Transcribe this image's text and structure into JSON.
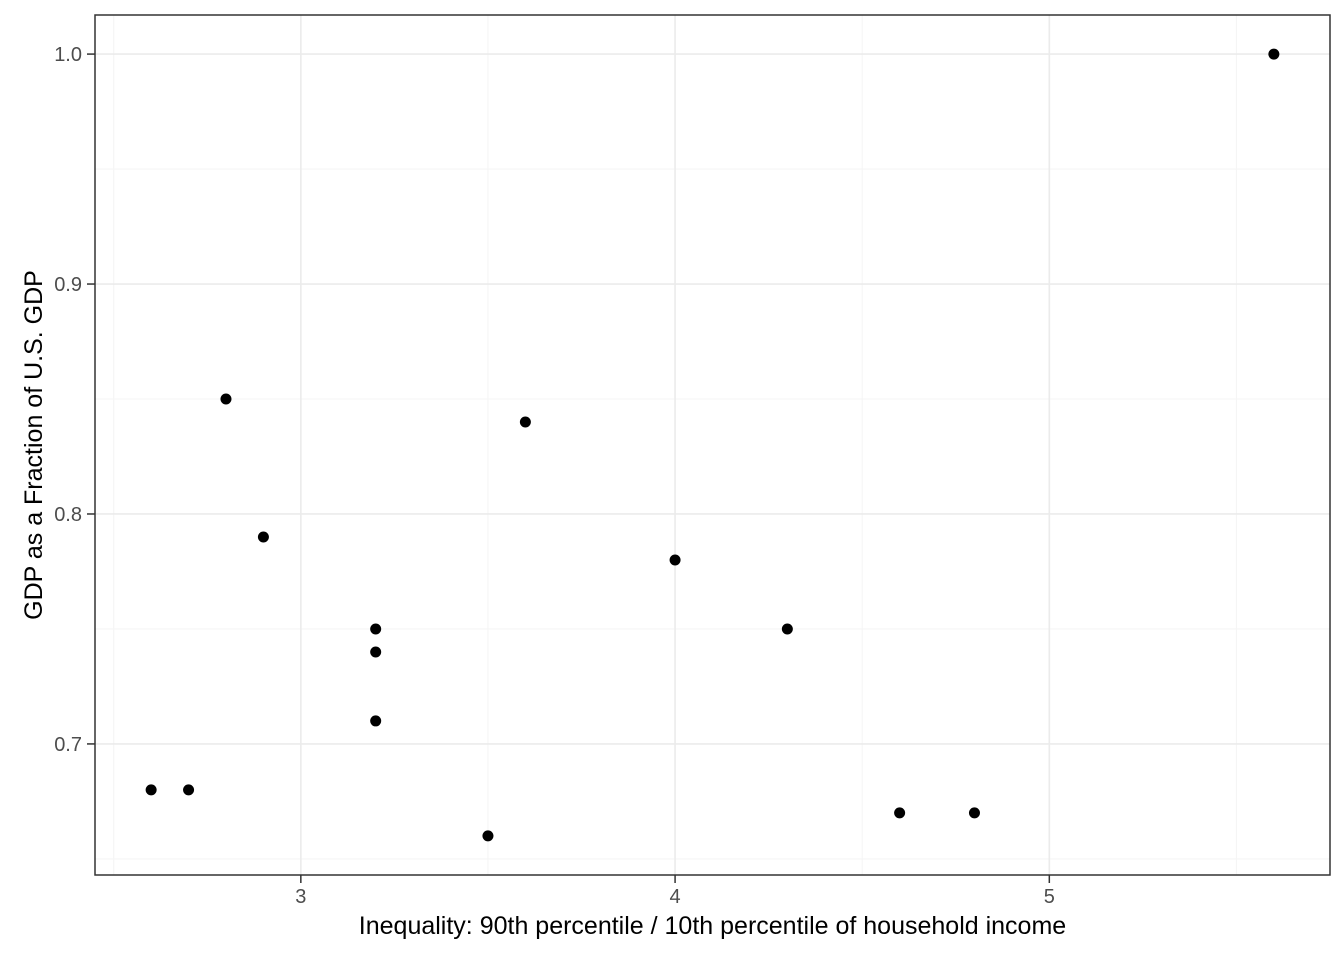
{
  "chart_data": {
    "type": "scatter",
    "title": "",
    "xlabel": "Inequality: 90th percentile / 10th percentile of household income",
    "ylabel": "GDP as a Fraction of U.S. GDP",
    "xlim": [
      2.45,
      5.75
    ],
    "ylim": [
      0.643,
      1.017
    ],
    "x_ticks": {
      "values": [
        3,
        4,
        5
      ],
      "labels": [
        "3",
        "4",
        "5"
      ]
    },
    "y_ticks": {
      "values": [
        0.7,
        0.8,
        0.9,
        1.0
      ],
      "labels": [
        "0.7",
        "0.8",
        "0.9",
        "1.0"
      ]
    },
    "x_minor_gridlines": [
      2.5,
      3.5,
      4.5,
      5.5
    ],
    "y_minor_gridlines": [
      0.65,
      0.75,
      0.85,
      0.95
    ],
    "grid": true,
    "legend": false,
    "point_radius_px": 5.5,
    "points": [
      {
        "x": 2.6,
        "y": 0.68
      },
      {
        "x": 2.7,
        "y": 0.68
      },
      {
        "x": 2.8,
        "y": 0.85
      },
      {
        "x": 2.9,
        "y": 0.79
      },
      {
        "x": 3.2,
        "y": 0.75
      },
      {
        "x": 3.2,
        "y": 0.74
      },
      {
        "x": 3.2,
        "y": 0.71
      },
      {
        "x": 3.5,
        "y": 0.66
      },
      {
        "x": 3.6,
        "y": 0.84
      },
      {
        "x": 4.0,
        "y": 0.78
      },
      {
        "x": 4.3,
        "y": 0.75
      },
      {
        "x": 4.6,
        "y": 0.67
      },
      {
        "x": 4.8,
        "y": 0.67
      },
      {
        "x": 5.6,
        "y": 1.0
      }
    ],
    "colors": {
      "point": "#000000",
      "grid_major": "#EBEBEB",
      "grid_minor": "#F5F5F5",
      "tick_label": "#4D4D4D",
      "axis_title": "#000000",
      "panel_border": "#333333",
      "background": "#FFFFFF"
    }
  }
}
